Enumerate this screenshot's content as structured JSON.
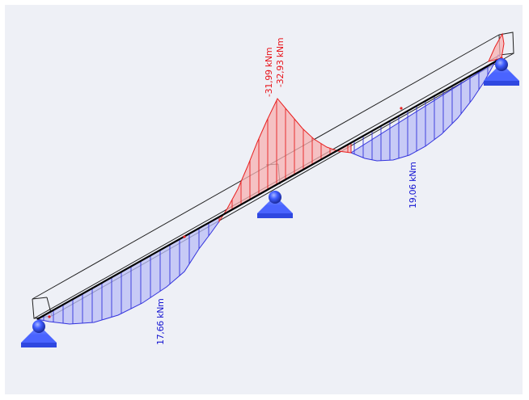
{
  "diagram": {
    "type": "continuous-beam-bending-moment",
    "colors": {
      "background": "#eef0f6",
      "positive_fill": "#b9bdf5",
      "positive_line": "#3333dd",
      "negative_fill": "#f7b1b1",
      "negative_line": "#e82020",
      "beam": "#000000",
      "support": "#3d5aff"
    },
    "labels": {
      "neg_moment_1": "-31,99 kNm",
      "neg_moment_2": "-32,93 kNm",
      "pos_moment_span2": "19,06 kNm",
      "pos_moment_span1": "17,66 kNm"
    },
    "supports": [
      {
        "name": "left",
        "icon": "pinned-support-icon"
      },
      {
        "name": "middle",
        "icon": "pinned-support-icon"
      },
      {
        "name": "right",
        "icon": "pinned-support-icon"
      }
    ]
  }
}
